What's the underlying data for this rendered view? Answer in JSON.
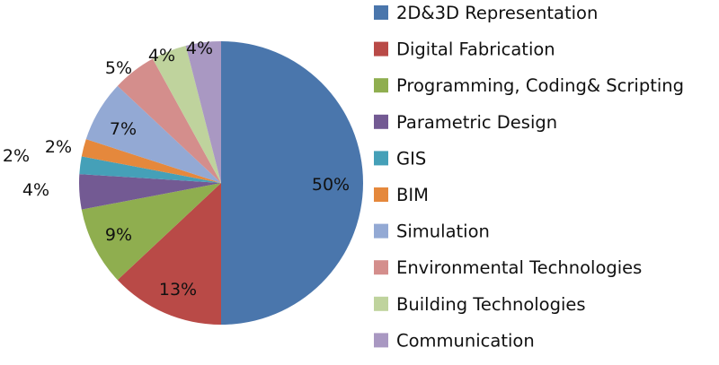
{
  "chart_data": {
    "type": "pie",
    "title": "",
    "start_angle": "top, clockwise",
    "legend_position": "right",
    "slices": [
      {
        "label": "2D&3D Representation",
        "value": 50,
        "display": "50%",
        "color": "#4A76AC"
      },
      {
        "label": "Digital Fabrication",
        "value": 13,
        "display": "13%",
        "color": "#B94A47"
      },
      {
        "label": "Programming, Coding& Scripting",
        "value": 9,
        "display": "9%",
        "color": "#8FAE4F"
      },
      {
        "label": "Parametric Design",
        "value": 4,
        "display": "4%",
        "color": "#735A93"
      },
      {
        "label": "GIS",
        "value": 2,
        "display": "2%",
        "color": "#45A0B8"
      },
      {
        "label": "BIM",
        "value": 2,
        "display": "2%",
        "color": "#E5883C"
      },
      {
        "label": "Simulation",
        "value": 7,
        "display": "7%",
        "color": "#93A9D4"
      },
      {
        "label": "Environmental Technologies",
        "value": 5,
        "display": "5%",
        "color": "#D48E8C"
      },
      {
        "label": "Building Technologies",
        "value": 4,
        "display": "4%",
        "color": "#BFD39D"
      },
      {
        "label": "Communication",
        "value": 4,
        "display": "4%",
        "color": "#A998C2"
      }
    ]
  }
}
